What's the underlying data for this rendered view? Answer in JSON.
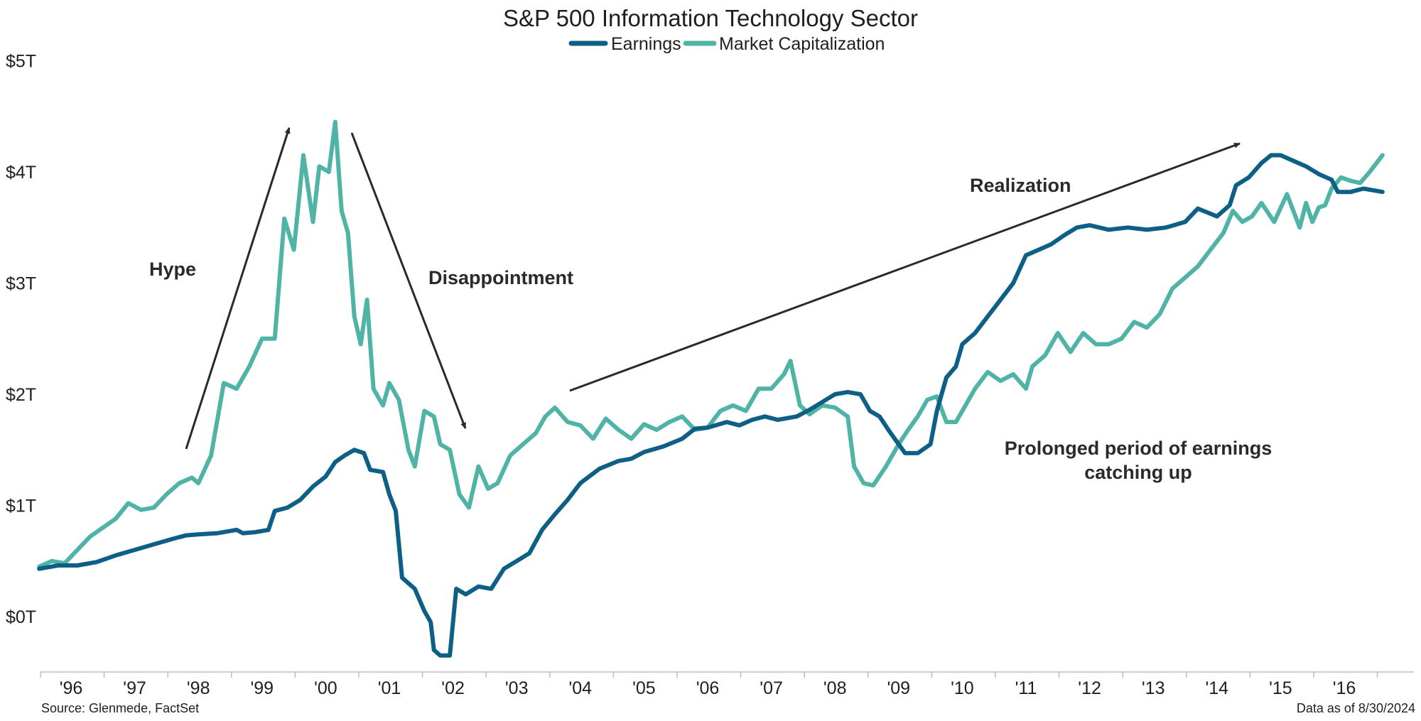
{
  "chart_data": {
    "type": "line",
    "title": "S&P 500 Information Technology Sector",
    "ylim": [
      -0.5,
      5.0
    ],
    "y_ticks": [
      "$0T",
      "$1T",
      "$2T",
      "$3T",
      "$4T",
      "$5T"
    ],
    "x_ticks": [
      "'96",
      "'97",
      "'98",
      "'99",
      "'00",
      "'01",
      "'02",
      "'03",
      "'04",
      "'05",
      "'06",
      "'07",
      "'08",
      "'09",
      "'10",
      "'11",
      "'12",
      "'13",
      "'14",
      "'15",
      "'16"
    ],
    "grid": false,
    "legend_position": "top-center",
    "series": [
      {
        "name": "Earnings",
        "color": "#0d5f86",
        "points": [
          [
            1995.5,
            0.43
          ],
          [
            1995.8,
            0.46
          ],
          [
            1996.1,
            0.46
          ],
          [
            1996.4,
            0.49
          ],
          [
            1996.7,
            0.55
          ],
          [
            1997.0,
            0.6
          ],
          [
            1997.3,
            0.65
          ],
          [
            1997.6,
            0.7
          ],
          [
            1997.8,
            0.73
          ],
          [
            1998.0,
            0.74
          ],
          [
            1998.3,
            0.75
          ],
          [
            1998.6,
            0.78
          ],
          [
            1998.7,
            0.75
          ],
          [
            1998.9,
            0.76
          ],
          [
            1999.1,
            0.78
          ],
          [
            1999.2,
            0.95
          ],
          [
            1999.4,
            0.98
          ],
          [
            1999.6,
            1.05
          ],
          [
            1999.8,
            1.17
          ],
          [
            2000.0,
            1.26
          ],
          [
            2000.15,
            1.39
          ],
          [
            2000.3,
            1.45
          ],
          [
            2000.45,
            1.5
          ],
          [
            2000.6,
            1.47
          ],
          [
            2000.7,
            1.32
          ],
          [
            2000.9,
            1.3
          ],
          [
            2001.0,
            1.1
          ],
          [
            2001.1,
            0.95
          ],
          [
            2001.2,
            0.35
          ],
          [
            2001.4,
            0.25
          ],
          [
            2001.55,
            0.05
          ],
          [
            2001.65,
            -0.05
          ],
          [
            2001.7,
            -0.3
          ],
          [
            2001.8,
            -0.35
          ],
          [
            2001.95,
            -0.35
          ],
          [
            2002.05,
            0.25
          ],
          [
            2002.2,
            0.2
          ],
          [
            2002.4,
            0.27
          ],
          [
            2002.6,
            0.25
          ],
          [
            2002.8,
            0.43
          ],
          [
            2003.0,
            0.5
          ],
          [
            2003.2,
            0.57
          ],
          [
            2003.4,
            0.78
          ],
          [
            2003.6,
            0.92
          ],
          [
            2003.8,
            1.05
          ],
          [
            2004.0,
            1.2
          ],
          [
            2004.3,
            1.33
          ],
          [
            2004.6,
            1.4
          ],
          [
            2004.8,
            1.42
          ],
          [
            2005.0,
            1.48
          ],
          [
            2005.3,
            1.53
          ],
          [
            2005.6,
            1.6
          ],
          [
            2005.8,
            1.69
          ],
          [
            2006.0,
            1.7
          ],
          [
            2006.3,
            1.75
          ],
          [
            2006.5,
            1.72
          ],
          [
            2006.7,
            1.77
          ],
          [
            2006.9,
            1.8
          ],
          [
            2007.1,
            1.77
          ],
          [
            2007.4,
            1.8
          ],
          [
            2007.6,
            1.86
          ],
          [
            2007.8,
            1.93
          ],
          [
            2008.0,
            2.0
          ],
          [
            2008.2,
            2.02
          ],
          [
            2008.4,
            2.0
          ],
          [
            2008.55,
            1.85
          ],
          [
            2008.7,
            1.8
          ],
          [
            2008.85,
            1.67
          ],
          [
            2009.0,
            1.55
          ],
          [
            2009.1,
            1.47
          ],
          [
            2009.3,
            1.47
          ],
          [
            2009.5,
            1.55
          ],
          [
            2009.6,
            1.85
          ],
          [
            2009.75,
            2.15
          ],
          [
            2009.9,
            2.25
          ],
          [
            2010.0,
            2.45
          ],
          [
            2010.2,
            2.55
          ],
          [
            2010.4,
            2.7
          ],
          [
            2010.6,
            2.85
          ],
          [
            2010.8,
            3.0
          ],
          [
            2011.0,
            3.25
          ],
          [
            2011.2,
            3.3
          ],
          [
            2011.4,
            3.35
          ],
          [
            2011.6,
            3.43
          ],
          [
            2011.8,
            3.5
          ],
          [
            2012.0,
            3.52
          ],
          [
            2012.3,
            3.48
          ],
          [
            2012.6,
            3.5
          ],
          [
            2012.9,
            3.48
          ],
          [
            2013.2,
            3.5
          ],
          [
            2013.5,
            3.55
          ],
          [
            2013.7,
            3.67
          ],
          [
            2014.0,
            3.6
          ],
          [
            2014.2,
            3.7
          ],
          [
            2014.3,
            3.88
          ],
          [
            2014.5,
            3.95
          ],
          [
            2014.7,
            4.08
          ],
          [
            2014.85,
            4.15
          ],
          [
            2015.0,
            4.15
          ],
          [
            2015.2,
            4.1
          ],
          [
            2015.4,
            4.05
          ],
          [
            2015.6,
            3.98
          ],
          [
            2015.8,
            3.93
          ],
          [
            2015.9,
            3.82
          ],
          [
            2016.1,
            3.82
          ],
          [
            2016.3,
            3.85
          ],
          [
            2016.5,
            3.83
          ],
          [
            2016.6,
            3.82
          ]
        ]
      },
      {
        "name": "Market Capitalization",
        "color": "#4fb3a6",
        "points": [
          [
            1995.5,
            0.45
          ],
          [
            1995.7,
            0.5
          ],
          [
            1995.9,
            0.48
          ],
          [
            1996.1,
            0.6
          ],
          [
            1996.3,
            0.72
          ],
          [
            1996.5,
            0.8
          ],
          [
            1996.7,
            0.88
          ],
          [
            1996.9,
            1.02
          ],
          [
            1997.1,
            0.96
          ],
          [
            1997.3,
            0.98
          ],
          [
            1997.5,
            1.1
          ],
          [
            1997.7,
            1.2
          ],
          [
            1997.9,
            1.25
          ],
          [
            1998.0,
            1.2
          ],
          [
            1998.2,
            1.45
          ],
          [
            1998.4,
            2.1
          ],
          [
            1998.6,
            2.05
          ],
          [
            1998.8,
            2.25
          ],
          [
            1999.0,
            2.5
          ],
          [
            1999.2,
            2.5
          ],
          [
            1999.35,
            3.58
          ],
          [
            1999.5,
            3.3
          ],
          [
            1999.65,
            4.15
          ],
          [
            1999.8,
            3.55
          ],
          [
            1999.9,
            4.05
          ],
          [
            2000.05,
            4.0
          ],
          [
            2000.15,
            4.45
          ],
          [
            2000.25,
            3.65
          ],
          [
            2000.35,
            3.45
          ],
          [
            2000.45,
            2.7
          ],
          [
            2000.55,
            2.45
          ],
          [
            2000.65,
            2.85
          ],
          [
            2000.75,
            2.05
          ],
          [
            2000.9,
            1.9
          ],
          [
            2001.0,
            2.1
          ],
          [
            2001.15,
            1.95
          ],
          [
            2001.3,
            1.5
          ],
          [
            2001.4,
            1.35
          ],
          [
            2001.55,
            1.85
          ],
          [
            2001.7,
            1.8
          ],
          [
            2001.8,
            1.55
          ],
          [
            2001.95,
            1.5
          ],
          [
            2002.1,
            1.1
          ],
          [
            2002.25,
            0.98
          ],
          [
            2002.4,
            1.35
          ],
          [
            2002.55,
            1.15
          ],
          [
            2002.7,
            1.2
          ],
          [
            2002.9,
            1.45
          ],
          [
            2003.1,
            1.55
          ],
          [
            2003.3,
            1.65
          ],
          [
            2003.45,
            1.8
          ],
          [
            2003.6,
            1.88
          ],
          [
            2003.8,
            1.75
          ],
          [
            2004.0,
            1.72
          ],
          [
            2004.2,
            1.6
          ],
          [
            2004.4,
            1.78
          ],
          [
            2004.6,
            1.68
          ],
          [
            2004.8,
            1.6
          ],
          [
            2005.0,
            1.73
          ],
          [
            2005.2,
            1.68
          ],
          [
            2005.4,
            1.75
          ],
          [
            2005.6,
            1.8
          ],
          [
            2005.8,
            1.68
          ],
          [
            2006.0,
            1.7
          ],
          [
            2006.2,
            1.85
          ],
          [
            2006.4,
            1.9
          ],
          [
            2006.6,
            1.85
          ],
          [
            2006.8,
            2.05
          ],
          [
            2007.0,
            2.05
          ],
          [
            2007.2,
            2.18
          ],
          [
            2007.3,
            2.3
          ],
          [
            2007.45,
            1.9
          ],
          [
            2007.6,
            1.82
          ],
          [
            2007.8,
            1.9
          ],
          [
            2008.0,
            1.88
          ],
          [
            2008.2,
            1.8
          ],
          [
            2008.3,
            1.35
          ],
          [
            2008.45,
            1.2
          ],
          [
            2008.6,
            1.18
          ],
          [
            2008.8,
            1.35
          ],
          [
            2009.0,
            1.55
          ],
          [
            2009.15,
            1.68
          ],
          [
            2009.3,
            1.8
          ],
          [
            2009.45,
            1.95
          ],
          [
            2009.6,
            1.98
          ],
          [
            2009.75,
            1.75
          ],
          [
            2009.9,
            1.75
          ],
          [
            2010.0,
            1.85
          ],
          [
            2010.2,
            2.05
          ],
          [
            2010.4,
            2.2
          ],
          [
            2010.6,
            2.12
          ],
          [
            2010.8,
            2.18
          ],
          [
            2011.0,
            2.05
          ],
          [
            2011.1,
            2.25
          ],
          [
            2011.3,
            2.35
          ],
          [
            2011.5,
            2.55
          ],
          [
            2011.7,
            2.38
          ],
          [
            2011.9,
            2.55
          ],
          [
            2012.1,
            2.45
          ],
          [
            2012.3,
            2.45
          ],
          [
            2012.5,
            2.5
          ],
          [
            2012.7,
            2.65
          ],
          [
            2012.9,
            2.6
          ],
          [
            2013.1,
            2.72
          ],
          [
            2013.3,
            2.95
          ],
          [
            2013.5,
            3.05
          ],
          [
            2013.7,
            3.15
          ],
          [
            2013.9,
            3.3
          ],
          [
            2014.1,
            3.45
          ],
          [
            2014.25,
            3.65
          ],
          [
            2014.4,
            3.55
          ],
          [
            2014.55,
            3.6
          ],
          [
            2014.7,
            3.72
          ],
          [
            2014.9,
            3.55
          ],
          [
            2015.1,
            3.8
          ],
          [
            2015.3,
            3.5
          ],
          [
            2015.4,
            3.72
          ],
          [
            2015.5,
            3.55
          ],
          [
            2015.6,
            3.68
          ],
          [
            2015.7,
            3.7
          ],
          [
            2015.8,
            3.85
          ],
          [
            2015.95,
            3.95
          ],
          [
            2016.1,
            3.92
          ],
          [
            2016.25,
            3.9
          ],
          [
            2016.4,
            4.0
          ],
          [
            2016.6,
            4.15
          ]
        ]
      }
    ],
    "annotations": [
      {
        "text": "Hype"
      },
      {
        "text": "Disappointment"
      },
      {
        "text": "Realization"
      },
      {
        "text": "Prolonged period of earnings catching up"
      }
    ]
  },
  "labels": {
    "source": "Source: Glenmede, FactSet",
    "data_as_of": "Data as of 8/30/2024",
    "annotation_hype": "Hype",
    "annotation_disappointment": "Disappointment",
    "annotation_realization": "Realization",
    "annotation_prolonged_1": "Prolonged period of earnings",
    "annotation_prolonged_2": "catching up"
  }
}
